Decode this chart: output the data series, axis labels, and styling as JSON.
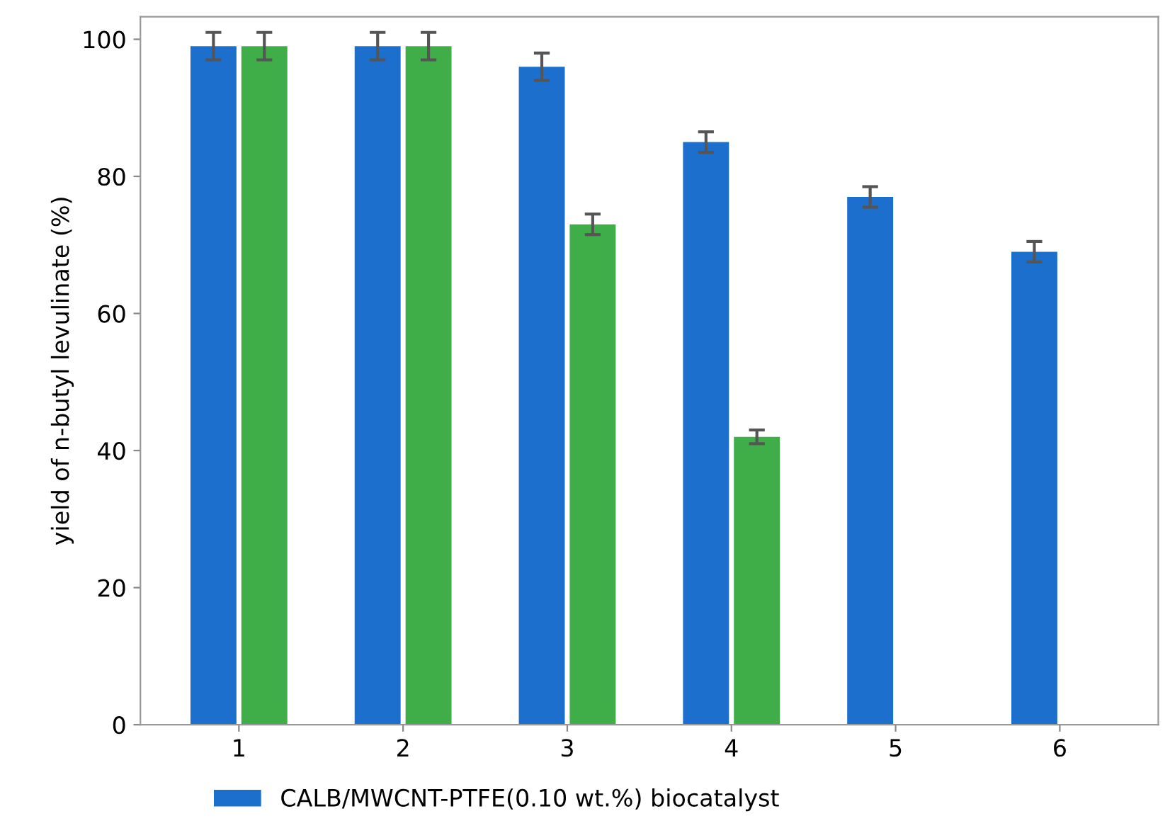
{
  "chart_data": {
    "type": "bar",
    "ylabel": "yield of n-butyl levulinate (%)",
    "categories": [
      "1",
      "2",
      "3",
      "4",
      "5",
      "6"
    ],
    "series": [
      {
        "name": "CALB/MWCNT-PTFE(0.10 wt.%) biocatalyst",
        "color": "#1c6fcc",
        "values": [
          99,
          99,
          96,
          85,
          77,
          69
        ],
        "errors": [
          2,
          2,
          2,
          1.5,
          1.5,
          1.5
        ]
      },
      {
        "color": "#3fae48",
        "values": [
          99,
          99,
          73,
          42,
          null,
          null
        ],
        "errors": [
          2,
          2,
          1.5,
          1,
          null,
          null
        ]
      }
    ],
    "ylim": [
      0,
      103.3
    ],
    "yticks": [
      0,
      20,
      40,
      60,
      80,
      100
    ],
    "grid": false,
    "legend": "bottom"
  }
}
